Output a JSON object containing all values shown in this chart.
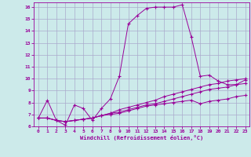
{
  "title": "",
  "xlabel": "Windchill (Refroidissement éolien,°C)",
  "bg_color": "#cceaea",
  "line_color": "#990099",
  "grid_color": "#aaaacc",
  "xlim": [
    -0.5,
    23.5
  ],
  "ylim": [
    6,
    16.4
  ],
  "xticks": [
    0,
    1,
    2,
    3,
    4,
    5,
    6,
    7,
    8,
    9,
    10,
    11,
    12,
    13,
    14,
    15,
    16,
    17,
    18,
    19,
    20,
    21,
    22,
    23
  ],
  "yticks": [
    6,
    7,
    8,
    9,
    10,
    11,
    12,
    13,
    14,
    15,
    16
  ],
  "curve1_x": [
    0,
    1,
    2,
    3,
    4,
    5,
    6,
    7,
    8,
    9,
    10,
    11,
    12,
    13,
    14,
    15,
    16,
    17,
    18,
    19,
    20,
    21,
    22,
    23
  ],
  "curve1_y": [
    6.7,
    8.2,
    6.5,
    6.1,
    7.8,
    7.5,
    6.5,
    7.5,
    8.3,
    10.2,
    14.6,
    15.3,
    15.9,
    16.0,
    16.0,
    16.0,
    16.2,
    13.5,
    10.2,
    10.3,
    9.8,
    9.5,
    9.5,
    9.9
  ],
  "curve2_x": [
    0,
    1,
    2,
    3,
    4,
    5,
    6,
    7,
    8,
    9,
    10,
    11,
    12,
    13,
    14,
    15,
    16,
    17,
    18,
    19,
    20,
    21,
    22,
    23
  ],
  "curve2_y": [
    6.7,
    6.7,
    6.5,
    6.4,
    6.5,
    6.6,
    6.7,
    6.9,
    7.1,
    7.2,
    7.4,
    7.6,
    7.8,
    7.9,
    8.1,
    8.3,
    8.5,
    8.7,
    8.9,
    9.1,
    9.2,
    9.3,
    9.5,
    9.6
  ],
  "curve3_x": [
    0,
    1,
    2,
    3,
    4,
    5,
    6,
    7,
    8,
    9,
    10,
    11,
    12,
    13,
    14,
    15,
    16,
    17,
    18,
    19,
    20,
    21,
    22,
    23
  ],
  "curve3_y": [
    6.7,
    6.7,
    6.5,
    6.4,
    6.5,
    6.6,
    6.7,
    6.9,
    7.1,
    7.4,
    7.6,
    7.8,
    8.0,
    8.2,
    8.5,
    8.7,
    8.9,
    9.1,
    9.3,
    9.5,
    9.6,
    9.8,
    9.9,
    10.0
  ],
  "curve4_x": [
    0,
    1,
    2,
    3,
    4,
    5,
    6,
    7,
    8,
    9,
    10,
    11,
    12,
    13,
    14,
    15,
    16,
    17,
    18,
    19,
    20,
    21,
    22,
    23
  ],
  "curve4_y": [
    6.7,
    6.7,
    6.5,
    6.4,
    6.5,
    6.6,
    6.7,
    6.9,
    7.0,
    7.1,
    7.3,
    7.5,
    7.7,
    7.8,
    7.9,
    8.0,
    8.1,
    8.2,
    7.9,
    8.1,
    8.2,
    8.3,
    8.5,
    8.6
  ]
}
